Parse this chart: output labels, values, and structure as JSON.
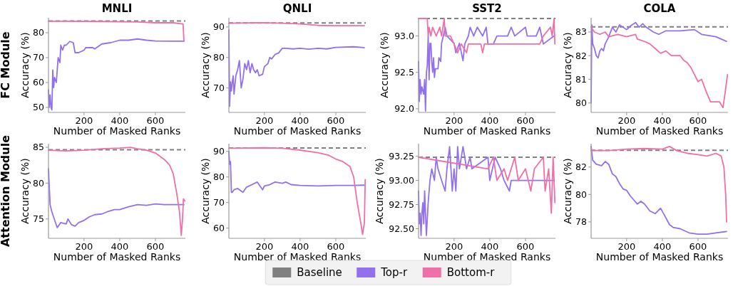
{
  "chart_data": [
    {
      "type": "line",
      "title": "MNLI",
      "xlabel": "Number of Masked Ranks",
      "ylabel": "Accuracy (%)",
      "annotations": [
        "FC Module"
      ],
      "legend": "bottom",
      "xlim": [
        1,
        768
      ],
      "xticks": [
        200,
        400,
        600
      ],
      "ylim": [
        48,
        86
      ],
      "yticks": [
        50,
        60,
        70,
        80
      ],
      "ref_lines": [
        {
          "axis": "y",
          "value": 84.7,
          "label": "Baseline",
          "color": "#808080",
          "line_style": "dashed"
        }
      ],
      "series": [
        {
          "name": "Top-r",
          "color": "#9370ee",
          "x": [
            1,
            5,
            10,
            15,
            20,
            25,
            30,
            35,
            45,
            55,
            65,
            70,
            80,
            90,
            100,
            120,
            140,
            150,
            170,
            200,
            210,
            250,
            260,
            300,
            350,
            400,
            450,
            500,
            550,
            600,
            700,
            760
          ],
          "values": [
            57,
            50,
            55,
            50,
            49,
            65,
            58,
            62,
            60,
            70,
            68,
            75,
            73,
            75,
            75,
            76.5,
            76,
            72,
            72,
            73,
            74,
            74,
            73.5,
            75.5,
            76,
            77,
            77,
            77.5,
            77,
            76.7,
            76.6,
            76.6
          ]
        },
        {
          "name": "Bottom-r",
          "color": "#f06fa8",
          "x": [
            1,
            100,
            300,
            500,
            600,
            700,
            755,
            760
          ],
          "values": [
            84.6,
            84.6,
            84.5,
            84.3,
            84,
            84,
            83.5,
            76.7
          ]
        }
      ]
    },
    {
      "type": "line",
      "title": "QNLI",
      "xlabel": "Number of Masked Ranks",
      "ylabel": "Accuracy (%)",
      "xlim": [
        1,
        768
      ],
      "xticks": [
        200,
        400,
        600
      ],
      "ylim": [
        62,
        93
      ],
      "yticks": [
        70,
        80,
        90
      ],
      "ref_lines": [
        {
          "axis": "y",
          "value": 91.3,
          "color": "#808080",
          "line_style": "dashed"
        }
      ],
      "series": [
        {
          "color": "#9370ee",
          "x": [
            1,
            5,
            10,
            15,
            20,
            25,
            30,
            40,
            50,
            60,
            70,
            80,
            90,
            100,
            110,
            120,
            130,
            140,
            150,
            160,
            170,
            190,
            200,
            220,
            230,
            240,
            260,
            280,
            300,
            320,
            360,
            400,
            450,
            500,
            550,
            600,
            700,
            760
          ],
          "values": [
            89,
            64,
            72,
            69,
            72,
            74,
            68,
            74,
            76,
            79,
            70,
            73,
            78,
            76,
            79,
            75,
            78,
            76,
            75,
            76,
            74,
            74.5,
            77,
            78,
            80,
            79.5,
            81,
            81.5,
            83,
            83,
            82.8,
            83,
            82.7,
            83,
            82.8,
            83.3,
            83.5,
            83.2
          ]
        },
        {
          "color": "#f06fa8",
          "x": [
            1,
            180,
            300,
            400,
            500,
            600,
            700,
            760
          ],
          "values": [
            91.2,
            91.4,
            91.2,
            91,
            90.5,
            90.4,
            90.4,
            90.4
          ]
        }
      ]
    },
    {
      "type": "line",
      "title": "SST2",
      "xlabel": "Number of Masked Ranks",
      "ylabel": "Accuracy (%)",
      "xlim": [
        1,
        768
      ],
      "xticks": [
        200,
        400,
        600
      ],
      "ylim": [
        91.95,
        93.25
      ],
      "yticks": [
        {
          "value": 92,
          "label": "92.0"
        },
        92.5,
        {
          "value": 93,
          "label": "93.0"
        }
      ],
      "ref_lines": [
        {
          "axis": "y",
          "value": 93.24,
          "color": "#808080",
          "line_style": "dashed"
        }
      ],
      "series": [
        {
          "color": "#9370ee",
          "x": [
            1,
            5,
            10,
            15,
            20,
            30,
            35,
            40,
            45,
            50,
            55,
            60,
            65,
            70,
            75,
            80,
            85,
            90,
            95,
            110,
            115,
            125,
            130,
            140,
            150,
            160,
            200,
            210,
            230,
            250,
            260,
            280,
            290,
            310,
            330,
            360,
            380,
            390,
            420,
            440,
            480,
            500,
            520,
            540,
            600,
            610,
            660,
            680,
            700,
            760
          ],
          "values": [
            92.65,
            92.1,
            92.4,
            92.2,
            92.3,
            92.2,
            92.4,
            91.97,
            92.5,
            92.6,
            93.0,
            92.4,
            92.9,
            92.9,
            92.65,
            92.5,
            92.7,
            92.43,
            92.55,
            92.55,
            92.7,
            92.65,
            92.9,
            93.0,
            93.12,
            93.0,
            92.9,
            92.77,
            92.9,
            92.66,
            92.89,
            93.0,
            93.12,
            93.0,
            93.12,
            93.0,
            93.12,
            92.89,
            92.89,
            93.0,
            93.0,
            93.0,
            93.12,
            93.0,
            93.12,
            93.0,
            93.0,
            93.12,
            92.89,
            93.0
          ]
        },
        {
          "color": "#f06fa8",
          "x": [
            1,
            50,
            55,
            60,
            70,
            80,
            100,
            120,
            130,
            145,
            150,
            180,
            200,
            220,
            240,
            270,
            280,
            350,
            360,
            370,
            500,
            600,
            680,
            700,
            740,
            750,
            760,
            765
          ],
          "values": [
            93.24,
            93.24,
            93.0,
            93.12,
            93.0,
            93.12,
            93.0,
            93.12,
            93.0,
            93.24,
            93.0,
            93.0,
            92.89,
            92.77,
            92.89,
            92.77,
            92.89,
            92.89,
            92.77,
            92.89,
            92.89,
            92.89,
            92.89,
            93.0,
            93.12,
            93.0,
            93.24,
            92.89
          ]
        }
      ]
    },
    {
      "type": "line",
      "title": "COLA",
      "xlabel": "Number of Masked Ranks",
      "ylabel": "Accuracy (%)",
      "xlim": [
        1,
        768
      ],
      "xticks": [
        200,
        400,
        600
      ],
      "ylim": [
        79.6,
        83.6
      ],
      "yticks": [
        80,
        81,
        82,
        83
      ],
      "ref_lines": [
        {
          "axis": "y",
          "value": 83.22,
          "color": "#808080",
          "line_style": "dashed"
        }
      ],
      "series": [
        {
          "color": "#9370ee",
          "x": [
            1,
            5,
            10,
            20,
            30,
            40,
            50,
            60,
            70,
            80,
            100,
            120,
            140,
            160,
            200,
            230,
            250,
            270,
            290,
            310,
            350,
            380,
            420,
            500,
            580,
            620,
            700,
            760
          ],
          "values": [
            80,
            83.3,
            82.5,
            82.3,
            82,
            81.9,
            82.2,
            82.3,
            82.2,
            82.5,
            82.8,
            83.2,
            83.0,
            83.3,
            83.1,
            83.3,
            83.4,
            83.2,
            83.35,
            83.2,
            83.0,
            82.9,
            83.05,
            83.05,
            83.1,
            82.9,
            82.8,
            82.6
          ]
        },
        {
          "color": "#f06fa8",
          "x": [
            1,
            20,
            50,
            80,
            100,
            150,
            200,
            250,
            260,
            300,
            330,
            360,
            390,
            420,
            450,
            500,
            520,
            540,
            560,
            580,
            600,
            620,
            650,
            670,
            720,
            740,
            755,
            765
          ],
          "values": [
            83.2,
            83.0,
            82.9,
            83.0,
            82.8,
            82.9,
            82.8,
            82.9,
            82.7,
            82.6,
            82.5,
            82.3,
            82.1,
            82.2,
            82.0,
            82.0,
            81.8,
            81.7,
            81.5,
            81.2,
            80.9,
            81.0,
            80.4,
            80.05,
            80.05,
            79.8,
            80.6,
            81.2
          ]
        }
      ]
    },
    {
      "type": "line",
      "xlabel": "Number of Masked Ranks",
      "ylabel": "Accuracy (%)",
      "annotations": [
        "Attention Module"
      ],
      "xlim": [
        1,
        768
      ],
      "xticks": [
        200,
        400,
        600
      ],
      "ylim": [
        72.3,
        85.5
      ],
      "yticks": [
        75,
        80,
        85
      ],
      "ref_lines": [
        {
          "axis": "y",
          "value": 84.65,
          "color": "#808080",
          "line_style": "dashed"
        }
      ],
      "series": [
        {
          "color": "#9370ee",
          "x": [
            1,
            10,
            20,
            40,
            50,
            70,
            100,
            110,
            130,
            150,
            170,
            200,
            230,
            260,
            300,
            330,
            370,
            400,
            450,
            500,
            550,
            600,
            650,
            700,
            740,
            760
          ],
          "values": [
            82,
            77,
            76,
            74.5,
            73.8,
            74.5,
            74.3,
            75,
            74.2,
            74,
            74.5,
            74.8,
            75.3,
            75.6,
            75.7,
            76,
            76.3,
            76.3,
            76.7,
            77,
            76.9,
            77.1,
            77,
            77,
            77,
            77
          ]
        },
        {
          "color": "#f06fa8",
          "x": [
            1,
            100,
            200,
            300,
            400,
            460,
            500,
            550,
            600,
            650,
            680,
            700,
            720,
            735,
            745,
            752,
            757,
            765
          ],
          "values": [
            84.6,
            84.5,
            84.6,
            84.8,
            84.9,
            85,
            84.8,
            84.6,
            84.2,
            83.3,
            82.5,
            81.3,
            78.5,
            76,
            72.7,
            75,
            77.8,
            77.5
          ]
        }
      ]
    },
    {
      "type": "line",
      "xlabel": "Number of Masked Ranks",
      "ylabel": "Accuracy (%)",
      "xlim": [
        1,
        768
      ],
      "xticks": [
        200,
        400,
        600
      ],
      "ylim": [
        56,
        93
      ],
      "yticks": [
        60,
        70,
        80,
        90
      ],
      "ref_lines": [
        {
          "axis": "y",
          "value": 91.3,
          "color": "#808080",
          "line_style": "dashed"
        }
      ],
      "series": [
        {
          "color": "#9370ee",
          "x": [
            1,
            5,
            10,
            15,
            20,
            30,
            50,
            80,
            100,
            130,
            160,
            190,
            200,
            230,
            260,
            300,
            320,
            350,
            400,
            500,
            600,
            700,
            760
          ],
          "values": [
            90,
            85,
            86,
            74,
            74,
            75,
            75.5,
            74,
            76,
            77,
            78,
            75,
            76.5,
            77,
            78,
            77.5,
            78,
            77,
            76.7,
            76.5,
            76.7,
            76.7,
            76.8
          ]
        },
        {
          "color": "#f06fa8",
          "x": [
            1,
            200,
            300,
            400,
            500,
            560,
            600,
            640,
            680,
            700,
            720,
            740,
            750,
            760,
            765
          ],
          "values": [
            91.2,
            91.4,
            91.2,
            90.5,
            89.5,
            88.5,
            87,
            86,
            84,
            80,
            70,
            62,
            57.5,
            62,
            79
          ]
        }
      ]
    },
    {
      "type": "line",
      "xlabel": "Number of Masked Ranks",
      "ylabel": "Accuracy (%)",
      "xlim": [
        1,
        768
      ],
      "xticks": [
        200,
        400,
        600
      ],
      "ylim": [
        92.4,
        93.38
      ],
      "yticks": [
        {
          "value": 92.5,
          "label": "92.50"
        },
        92.75,
        {
          "value": 93,
          "label": "93.00"
        },
        93.25
      ],
      "ref_lines": [
        {
          "axis": "y",
          "value": 93.24,
          "color": "#808080",
          "line_style": "dashed"
        }
      ],
      "series": [
        {
          "color": "#9370ee",
          "x": [
            1,
            5,
            10,
            15,
            20,
            25,
            30,
            35,
            40,
            45,
            55,
            65,
            75,
            90,
            100,
            110,
            130,
            150,
            160,
            175,
            190,
            200,
            210,
            220,
            230,
            250,
            260,
            270,
            290,
            300,
            390,
            400,
            430,
            460,
            480,
            510,
            520,
            600,
            700,
            760
          ],
          "values": [
            92.89,
            92.55,
            92.66,
            92.43,
            92.66,
            92.77,
            92.55,
            92.89,
            92.66,
            92.43,
            92.77,
            93.0,
            93.12,
            93.0,
            93.24,
            93.12,
            93.0,
            92.89,
            93.12,
            93.35,
            92.89,
            93.12,
            92.89,
            93.35,
            93.12,
            93.35,
            93.24,
            93.12,
            93.24,
            93.12,
            93.24,
            93.0,
            93.24,
            93.12,
            93.0,
            92.89,
            93.0,
            93.0,
            93.0,
            93.0
          ]
        },
        {
          "color": "#f06fa8",
          "x": [
            1,
            390,
            420,
            440,
            480,
            500,
            540,
            560,
            600,
            630,
            650,
            700,
            710,
            730,
            745,
            755,
            765
          ],
          "values": [
            93.24,
            93.12,
            93.24,
            93.0,
            93.12,
            93.0,
            93.24,
            93.0,
            93.12,
            92.89,
            93.12,
            93.24,
            92.89,
            93.12,
            92.66,
            93.24,
            92.77
          ]
        }
      ]
    },
    {
      "type": "line",
      "xlabel": "Number of Masked Ranks",
      "ylabel": "Accuracy (%)",
      "xlim": [
        1,
        768
      ],
      "xticks": [
        200,
        400,
        600
      ],
      "ylim": [
        76.8,
        83.7
      ],
      "yticks": [
        78,
        80,
        82
      ],
      "ref_lines": [
        {
          "axis": "y",
          "value": 83.22,
          "color": "#808080",
          "line_style": "dashed"
        }
      ],
      "series": [
        {
          "color": "#9370ee",
          "x": [
            1,
            10,
            30,
            60,
            80,
            100,
            120,
            140,
            160,
            180,
            200,
            220,
            240,
            260,
            280,
            300,
            330,
            360,
            390,
            420,
            440,
            460,
            500,
            550,
            600,
            650,
            700,
            760
          ],
          "values": [
            83.5,
            82.5,
            82.2,
            82.1,
            82.4,
            82.2,
            81.5,
            81.3,
            80.8,
            80.4,
            80.3,
            79.9,
            79.6,
            79.3,
            79.5,
            79.3,
            78.8,
            78.6,
            79,
            78.3,
            77.8,
            77.6,
            77.5,
            77.2,
            77.1,
            77.1,
            77.2,
            77.3
          ]
        },
        {
          "color": "#f06fa8",
          "x": [
            1,
            100,
            200,
            300,
            400,
            440,
            480,
            540,
            600,
            650,
            700,
            730,
            745,
            755,
            760
          ],
          "values": [
            83.2,
            83.2,
            83.3,
            83.35,
            83.3,
            83.5,
            83.2,
            83.0,
            82.9,
            82.8,
            83.0,
            82.8,
            82,
            80,
            78
          ]
        }
      ]
    }
  ]
}
